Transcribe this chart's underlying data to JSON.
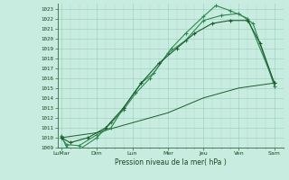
{
  "bg_color": "#c8ede0",
  "grid_color": "#99ccbb",
  "line_color_dark": "#1a5c2a",
  "line_color_mid": "#2d8a50",
  "xtick_labels": [
    "LuMar",
    "Dim",
    "Lun",
    "Mer",
    "Jeu",
    "Ven",
    "Sam"
  ],
  "xtick_positions": [
    0,
    2,
    4,
    6,
    8,
    10,
    12
  ],
  "xlabel_text": "Pression niveau de la mer( hPa )",
  "ylim_min": 1009,
  "ylim_max": 1023.5,
  "ytick_min": 1009,
  "ytick_max": 1023,
  "series1_x": [
    0,
    0.3,
    1.0,
    2.0,
    2.8,
    3.5,
    4.2,
    5.0,
    6.0,
    7.0,
    8.0,
    9.0,
    10.0,
    10.8,
    12.0
  ],
  "series1_y": [
    1010.2,
    1009.0,
    1008.8,
    1010.0,
    1011.5,
    1012.8,
    1014.5,
    1016.0,
    1018.5,
    1019.8,
    1021.8,
    1022.3,
    1022.5,
    1021.5,
    1015.2
  ],
  "series2_x": [
    0,
    0.3,
    1.0,
    2.0,
    2.8,
    3.5,
    4.5,
    5.2,
    6.2,
    7.0,
    8.0,
    8.7,
    9.5,
    10.5,
    12.0
  ],
  "series2_y": [
    1010.0,
    1009.3,
    1009.2,
    1010.3,
    1011.0,
    1013.0,
    1015.5,
    1016.5,
    1019.0,
    1020.5,
    1022.2,
    1023.3,
    1022.8,
    1022.0,
    1015.5
  ],
  "series3_x": [
    0,
    0.5,
    1.5,
    2.5,
    3.5,
    4.5,
    5.5,
    6.5,
    7.5,
    8.5,
    9.5,
    10.5,
    11.2,
    12.0
  ],
  "series3_y": [
    1010.0,
    1009.5,
    1010.0,
    1011.0,
    1013.0,
    1015.5,
    1017.5,
    1019.0,
    1020.5,
    1021.5,
    1021.8,
    1021.8,
    1019.5,
    1015.5
  ],
  "series4_x": [
    0,
    2.0,
    4.0,
    6.0,
    8.0,
    10.0,
    12.0
  ],
  "series4_y": [
    1010.0,
    1010.5,
    1011.5,
    1012.5,
    1014.0,
    1015.0,
    1015.5
  ]
}
